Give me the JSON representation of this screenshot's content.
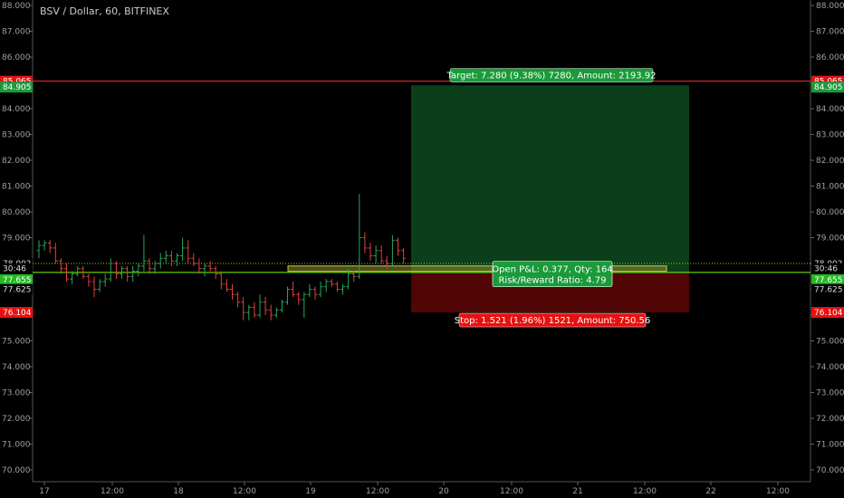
{
  "title": "BSV / Dollar, 60, BITFINEX",
  "colors": {
    "up": "#26a65b",
    "down": "#e0413a",
    "target_line": "#ff2b2b",
    "entry_line": "#7cfc00",
    "profit_zone": "#0d4a1d",
    "loss_zone": "#5a0606",
    "grid_tick": "#666666"
  },
  "chart_data": {
    "type": "line",
    "chart_style": "ohlc-bars",
    "ylim": [
      69.5,
      88.3
    ],
    "y_ticks": [
      "88.000",
      "87.000",
      "86.000",
      "85.000",
      "84.000",
      "83.000",
      "82.000",
      "81.000",
      "80.000",
      "79.000",
      "78.000",
      "77.000",
      "76.000",
      "75.000",
      "74.000",
      "73.000",
      "72.000",
      "71.000",
      "70.000"
    ],
    "x_ticks": [
      "17",
      "12:00",
      "18",
      "12:00",
      "19",
      "12:00",
      "20",
      "12:00",
      "21",
      "12:00",
      "22",
      "12:00"
    ],
    "series": [
      {
        "values": [
          [
            78.5,
            78.9,
            78.2,
            78.7
          ],
          [
            78.7,
            78.9,
            78.5,
            78.8
          ],
          [
            78.8,
            78.9,
            78.4,
            78.6
          ],
          [
            78.6,
            78.8,
            78.0,
            78.1
          ],
          [
            78.1,
            78.2,
            77.6,
            77.8
          ],
          [
            77.8,
            78.0,
            77.3,
            77.4
          ],
          [
            77.4,
            77.7,
            77.2,
            77.6
          ],
          [
            77.6,
            77.9,
            77.5,
            77.8
          ],
          [
            77.8,
            77.9,
            77.4,
            77.5
          ],
          [
            77.5,
            77.6,
            77.1,
            77.3
          ],
          [
            77.3,
            77.5,
            76.7,
            77.0
          ],
          [
            77.0,
            77.4,
            76.9,
            77.3
          ],
          [
            77.3,
            77.6,
            77.1,
            77.4
          ],
          [
            77.4,
            78.2,
            77.3,
            78.0
          ],
          [
            78.0,
            78.1,
            77.4,
            77.6
          ],
          [
            77.6,
            77.9,
            77.4,
            77.8
          ],
          [
            77.8,
            77.9,
            77.3,
            77.5
          ],
          [
            77.5,
            77.9,
            77.3,
            77.7
          ],
          [
            77.7,
            78.0,
            77.5,
            77.9
          ],
          [
            77.9,
            79.1,
            77.7,
            78.1
          ],
          [
            78.1,
            78.2,
            77.6,
            77.8
          ],
          [
            77.8,
            78.1,
            77.6,
            78.0
          ],
          [
            78.0,
            78.4,
            77.8,
            78.2
          ],
          [
            78.2,
            78.5,
            78.0,
            78.3
          ],
          [
            78.3,
            78.5,
            77.9,
            78.1
          ],
          [
            78.1,
            78.4,
            77.9,
            78.3
          ],
          [
            78.3,
            79.0,
            78.1,
            78.6
          ],
          [
            78.6,
            78.9,
            78.0,
            78.2
          ],
          [
            78.2,
            78.4,
            77.9,
            78.0
          ],
          [
            78.0,
            78.2,
            77.6,
            77.8
          ],
          [
            77.8,
            78.0,
            77.5,
            77.9
          ],
          [
            77.9,
            78.1,
            77.7,
            77.8
          ],
          [
            77.8,
            77.9,
            77.4,
            77.6
          ],
          [
            77.6,
            77.7,
            77.0,
            77.2
          ],
          [
            77.2,
            77.4,
            76.9,
            77.0
          ],
          [
            77.0,
            77.2,
            76.6,
            76.8
          ],
          [
            76.8,
            76.9,
            76.3,
            76.5
          ],
          [
            76.5,
            76.7,
            75.8,
            76.1
          ],
          [
            76.1,
            76.4,
            75.8,
            76.3
          ],
          [
            76.3,
            76.5,
            75.9,
            76.0
          ],
          [
            76.0,
            76.8,
            75.9,
            76.5
          ],
          [
            76.5,
            76.7,
            76.0,
            76.2
          ],
          [
            76.2,
            76.4,
            75.8,
            76.0
          ],
          [
            76.0,
            76.3,
            75.9,
            76.2
          ],
          [
            76.2,
            76.6,
            76.1,
            76.5
          ],
          [
            76.5,
            77.1,
            76.4,
            77.0
          ],
          [
            77.0,
            77.3,
            76.7,
            76.8
          ],
          [
            76.8,
            76.9,
            76.4,
            76.6
          ],
          [
            76.6,
            76.9,
            75.9,
            76.8
          ],
          [
            76.8,
            77.2,
            76.7,
            77.0
          ],
          [
            77.0,
            77.1,
            76.6,
            76.8
          ],
          [
            76.8,
            77.3,
            76.7,
            77.1
          ],
          [
            77.1,
            77.4,
            76.9,
            77.3
          ],
          [
            77.3,
            77.4,
            77.1,
            77.2
          ],
          [
            77.2,
            77.3,
            76.9,
            77.0
          ],
          [
            77.0,
            77.2,
            76.8,
            77.1
          ],
          [
            77.1,
            77.8,
            77.0,
            77.6
          ],
          [
            77.6,
            77.7,
            77.3,
            77.5
          ],
          [
            77.5,
            80.7,
            77.4,
            79.0
          ],
          [
            79.0,
            79.2,
            78.4,
            78.6
          ],
          [
            78.6,
            78.8,
            78.1,
            78.3
          ],
          [
            78.3,
            78.7,
            78.0,
            78.5
          ],
          [
            78.5,
            78.7,
            78.0,
            78.1
          ],
          [
            78.1,
            78.3,
            77.8,
            78.0
          ],
          [
            78.0,
            79.1,
            77.9,
            78.9
          ],
          [
            78.9,
            79.0,
            78.3,
            78.5
          ],
          [
            78.5,
            78.6,
            78.0,
            78.2
          ]
        ]
      }
    ],
    "current_price": "77.655",
    "countdown": "30:46",
    "axis_labels": {
      "target": "85.065",
      "target_green": "84.905",
      "last_close": "78.002",
      "entry": "77.625",
      "stop": "76.104"
    },
    "position": {
      "target_price": 85.065,
      "entry_price": 77.625,
      "stop_price": 76.104,
      "last_close_price": 78.002,
      "profit_box_top": 84.905,
      "target_label": "Target: 7.280 (9.38%) 7280, Amount: 2193.92",
      "stop_label": "Stop: 1.521 (1.96%) 1521, Amount: 750.56",
      "pnl_label": "Open P&L: 0.377, Qty: 164",
      "rr_label": "Risk/Reward Ratio: 4.79"
    }
  }
}
